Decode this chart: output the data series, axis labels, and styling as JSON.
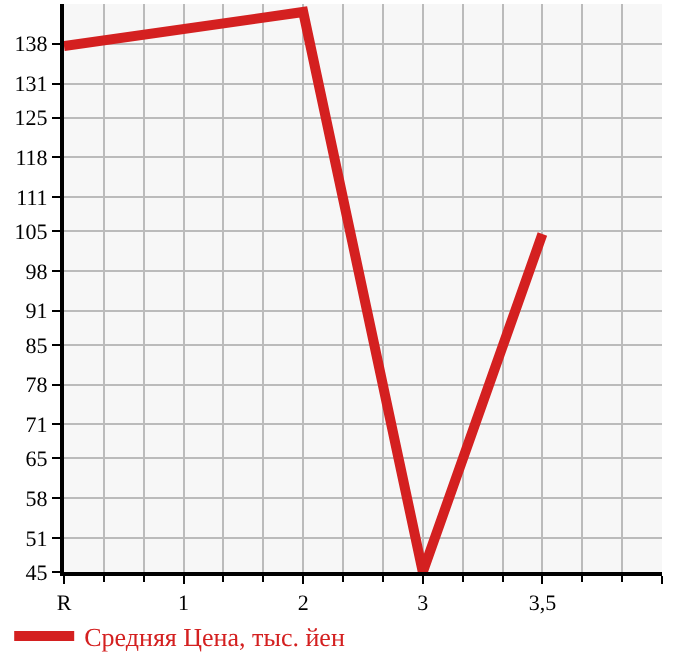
{
  "chart_data": {
    "type": "line",
    "categories": [
      "R",
      "1",
      "2",
      "3",
      "3,5",
      null
    ],
    "series": [
      {
        "name": "Средняя Цена, тыс. йен",
        "color": "#d42020",
        "values": [
          137.6,
          null,
          143.6,
          45,
          104.5,
          null
        ]
      }
    ],
    "ylim": [
      45,
      145
    ],
    "yticks": [
      45,
      51,
      58,
      65,
      71,
      78,
      85,
      91,
      98,
      105,
      111,
      118,
      125,
      131,
      138
    ],
    "grid": true,
    "legend": "bottom left",
    "marker": "none",
    "line_style": "solid"
  }
}
